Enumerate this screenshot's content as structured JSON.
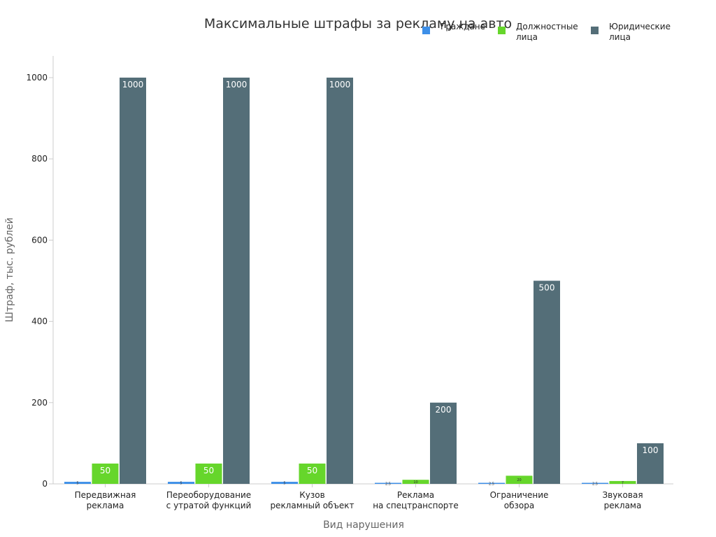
{
  "chart_data": {
    "type": "bar",
    "title": "Максимальные штрафы за рекламу на авто",
    "xlabel": "Вид нарушения",
    "ylabel": "Штраф, тыс. рублей",
    "ylim": [
      0,
      1050
    ],
    "yticks": [
      0,
      200,
      400,
      600,
      800,
      1000
    ],
    "grid": false,
    "legend_position": "top-right",
    "categories": [
      [
        "Передвижная",
        "реклама"
      ],
      [
        "Переоборудование",
        "с утратой функций"
      ],
      [
        "Кузов",
        "рекламный объект"
      ],
      [
        "Реклама",
        "на спецтранспорте"
      ],
      [
        "Ограничение",
        "обзора"
      ],
      [
        "Звуковая",
        "реклама"
      ]
    ],
    "series": [
      {
        "name": [
          "Граждане"
        ],
        "color": "#3d8fe8",
        "values": [
          5,
          5,
          5,
          2.5,
          2.5,
          2.5
        ],
        "labels": [
          "5",
          "5",
          "5",
          "2.5",
          "2.5",
          "2.5"
        ]
      },
      {
        "name": [
          "Должностные",
          "лица"
        ],
        "color": "#66d62b",
        "values": [
          50,
          50,
          50,
          10,
          20,
          7
        ],
        "labels": [
          "50",
          "50",
          "50",
          "10",
          "20",
          "7"
        ]
      },
      {
        "name": [
          "Юридические",
          "лица"
        ],
        "color": "#546e78",
        "values": [
          1000,
          1000,
          1000,
          200,
          500,
          100
        ],
        "labels": [
          "1000",
          "1000",
          "1000",
          "200",
          "500",
          "100"
        ]
      }
    ]
  }
}
